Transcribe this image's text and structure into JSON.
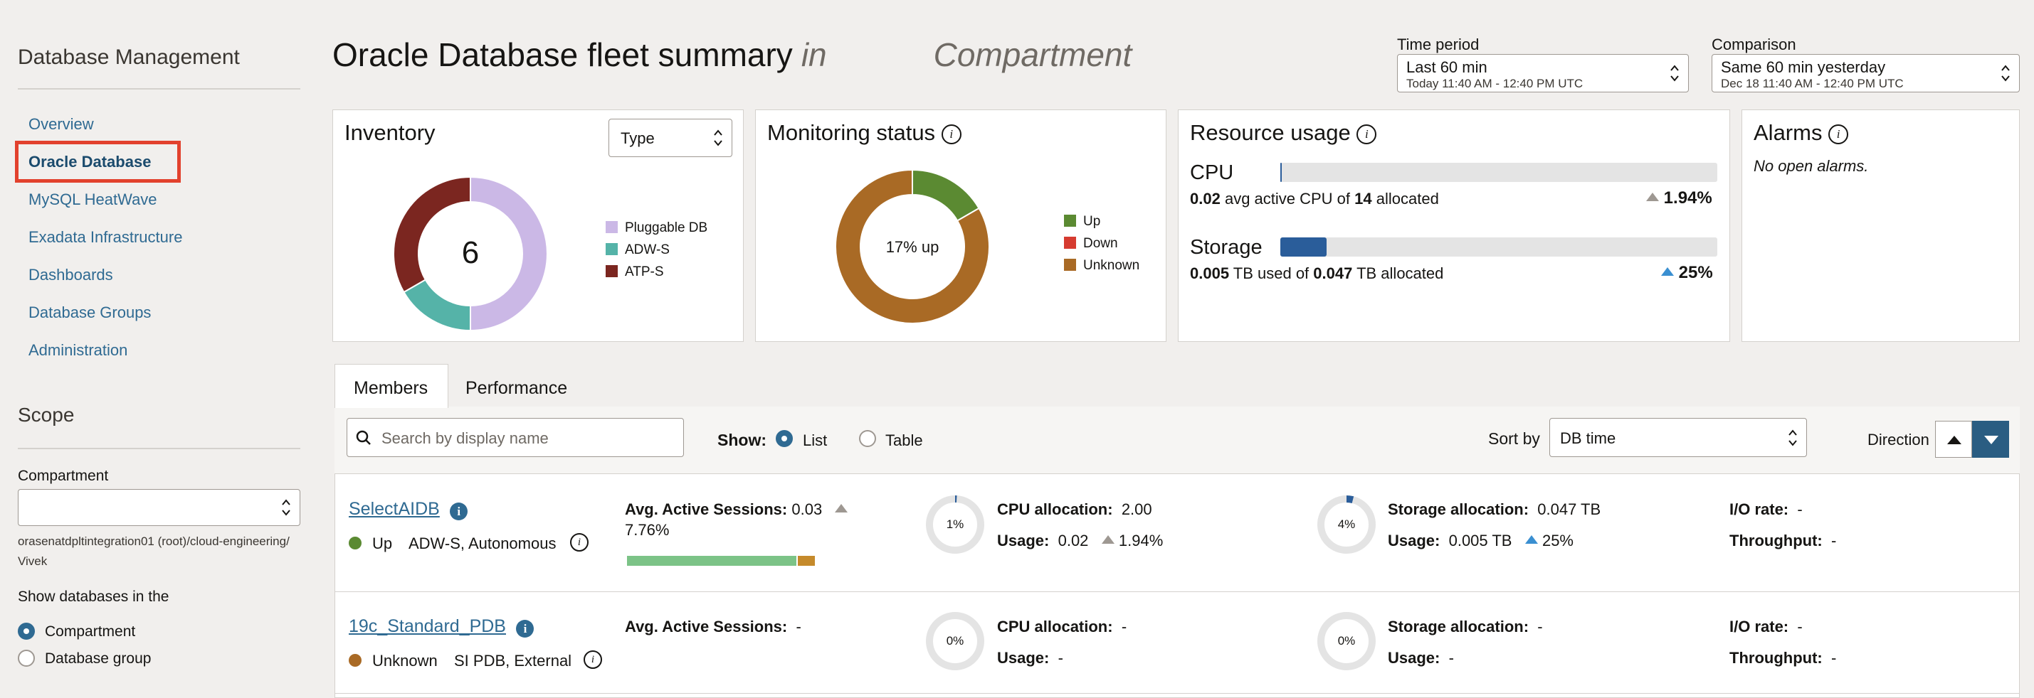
{
  "sidebar": {
    "title": "Database Management",
    "items": [
      {
        "label": "Overview"
      },
      {
        "label": "Oracle Database"
      },
      {
        "label": "MySQL HeatWave"
      },
      {
        "label": "Exadata Infrastructure"
      },
      {
        "label": "Dashboards"
      },
      {
        "label": "Database Groups"
      },
      {
        "label": "Administration"
      }
    ],
    "scope_title": "Scope",
    "compartment_label": "Compartment",
    "compartment_value": "",
    "compartment_path": "orasenatdpltintegration01 (root)/cloud-engineering/ Vivek",
    "show_dbs_label": "Show databases in the",
    "radio_compartment": "Compartment",
    "radio_group": "Database group"
  },
  "header": {
    "title": "Oracle Database fleet summary",
    "in": "in",
    "compartment": "Compartment",
    "time_period_label": "Time period",
    "time_period_value": "Last 60 min",
    "time_period_sub": "Today 11:40 AM - 12:40 PM UTC",
    "comparison_label": "Comparison",
    "comparison_value": "Same 60 min yesterday",
    "comparison_sub": "Dec 18 11:40 AM - 12:40 PM UTC"
  },
  "inventory": {
    "title": "Inventory",
    "type_select": "Type",
    "total": "6",
    "legend": [
      {
        "label": "Pluggable DB",
        "color": "#cbb8e6"
      },
      {
        "label": "ADW-S",
        "color": "#55b3a8"
      },
      {
        "label": "ATP-S",
        "color": "#7b2620"
      }
    ],
    "values": [
      3,
      1,
      2
    ]
  },
  "monitoring": {
    "title": "Monitoring status",
    "center": "17% up",
    "legend": [
      {
        "label": "Up",
        "color": "#5b8a32"
      },
      {
        "label": "Down",
        "color": "#d63b30"
      },
      {
        "label": "Unknown",
        "color": "#a96a25"
      }
    ],
    "values": [
      1,
      0,
      5
    ]
  },
  "resource": {
    "title": "Resource usage",
    "cpu_label": "CPU",
    "cpu_val": "0.02",
    "cpu_mid": "avg active CPU of",
    "cpu_alloc": "14",
    "cpu_tail": "allocated",
    "cpu_change": "1.94%",
    "cpu_fill": 0.0014,
    "storage_label": "Storage",
    "storage_val": "0.005",
    "storage_mid": "TB used of",
    "storage_alloc": "0.047",
    "storage_tail": "TB allocated",
    "storage_change": "25%",
    "storage_fill": 0.106
  },
  "alarms": {
    "title": "Alarms",
    "message": "No open alarms."
  },
  "members": {
    "tab_members": "Members",
    "tab_performance": "Performance",
    "search_placeholder": "Search by display name",
    "show_label": "Show:",
    "show_list": "List",
    "show_table": "Table",
    "sort_label": "Sort by",
    "sort_value": "DB time",
    "direction_label": "Direction",
    "rows": [
      {
        "name": "SelectAIDB",
        "status": "Up",
        "status_color": "#5b8a32",
        "kind": "ADW-S, Autonomous",
        "aas_label": "Avg. Active Sessions:",
        "aas_value": "0.03",
        "aas_change": "7.76%",
        "cpu_pct": "1%",
        "cpu_fill": 0.01,
        "cpu_alloc_label": "CPU allocation:",
        "cpu_alloc": "2.00",
        "usage_label": "Usage:",
        "cpu_usage": "0.02",
        "cpu_change": "1.94%",
        "storage_pct": "4%",
        "storage_fill": 0.04,
        "storage_alloc_label": "Storage allocation:",
        "storage_alloc": "0.047 TB",
        "storage_usage": "0.005 TB",
        "storage_change": "25%",
        "io_label": "I/O rate:",
        "io_value": "-",
        "tp_label": "Throughput:",
        "tp_value": "-"
      },
      {
        "name": "19c_Standard_PDB",
        "status": "Unknown",
        "status_color": "#a96a25",
        "kind": "SI PDB, External",
        "aas_label": "Avg. Active Sessions:",
        "aas_value": "-",
        "cpu_pct": "0%",
        "cpu_fill": 0,
        "cpu_alloc_label": "CPU allocation:",
        "cpu_alloc": "-",
        "usage_label": "Usage:",
        "cpu_usage": "-",
        "storage_pct": "0%",
        "storage_fill": 0,
        "storage_alloc_label": "Storage allocation:",
        "storage_alloc": "-",
        "storage_usage": "-",
        "io_label": "I/O rate:",
        "io_value": "-",
        "tp_label": "Throughput:",
        "tp_value": "-"
      }
    ]
  },
  "colors": {
    "link": "#2f6a92",
    "highlight": "#e2412d",
    "cpu_bar": "#2a5d9a",
    "aas_bar_green": "#7cc387",
    "aas_bar_orange": "#c58a2b"
  }
}
